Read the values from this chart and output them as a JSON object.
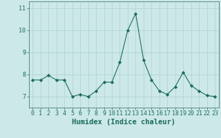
{
  "x": [
    0,
    1,
    2,
    3,
    4,
    5,
    6,
    7,
    8,
    9,
    10,
    11,
    12,
    13,
    14,
    15,
    16,
    17,
    18,
    19,
    20,
    21,
    22,
    23
  ],
  "y": [
    7.75,
    7.75,
    7.95,
    7.75,
    7.75,
    7.0,
    7.1,
    7.0,
    7.25,
    7.65,
    7.65,
    8.55,
    10.0,
    10.75,
    8.65,
    7.75,
    7.25,
    7.1,
    7.45,
    8.1,
    7.5,
    7.25,
    7.05,
    7.0
  ],
  "line_color": "#1a6b5a",
  "marker": "D",
  "marker_size": 2.2,
  "bg_color": "#cce8e8",
  "grid_color": "#b0d0d0",
  "xlabel": "Humidex (Indice chaleur)",
  "xlim": [
    -0.5,
    23.5
  ],
  "ylim": [
    6.5,
    11.3
  ],
  "yticks": [
    7,
    8,
    9,
    10,
    11
  ],
  "xticks": [
    0,
    1,
    2,
    3,
    4,
    5,
    6,
    7,
    8,
    9,
    10,
    11,
    12,
    13,
    14,
    15,
    16,
    17,
    18,
    19,
    20,
    21,
    22,
    23
  ],
  "tick_color": "#1a6b5a",
  "label_color": "#1a6b5a",
  "spine_color": "#5a8a80",
  "xlabel_fontsize": 7.5,
  "tick_fontsize": 6.0
}
